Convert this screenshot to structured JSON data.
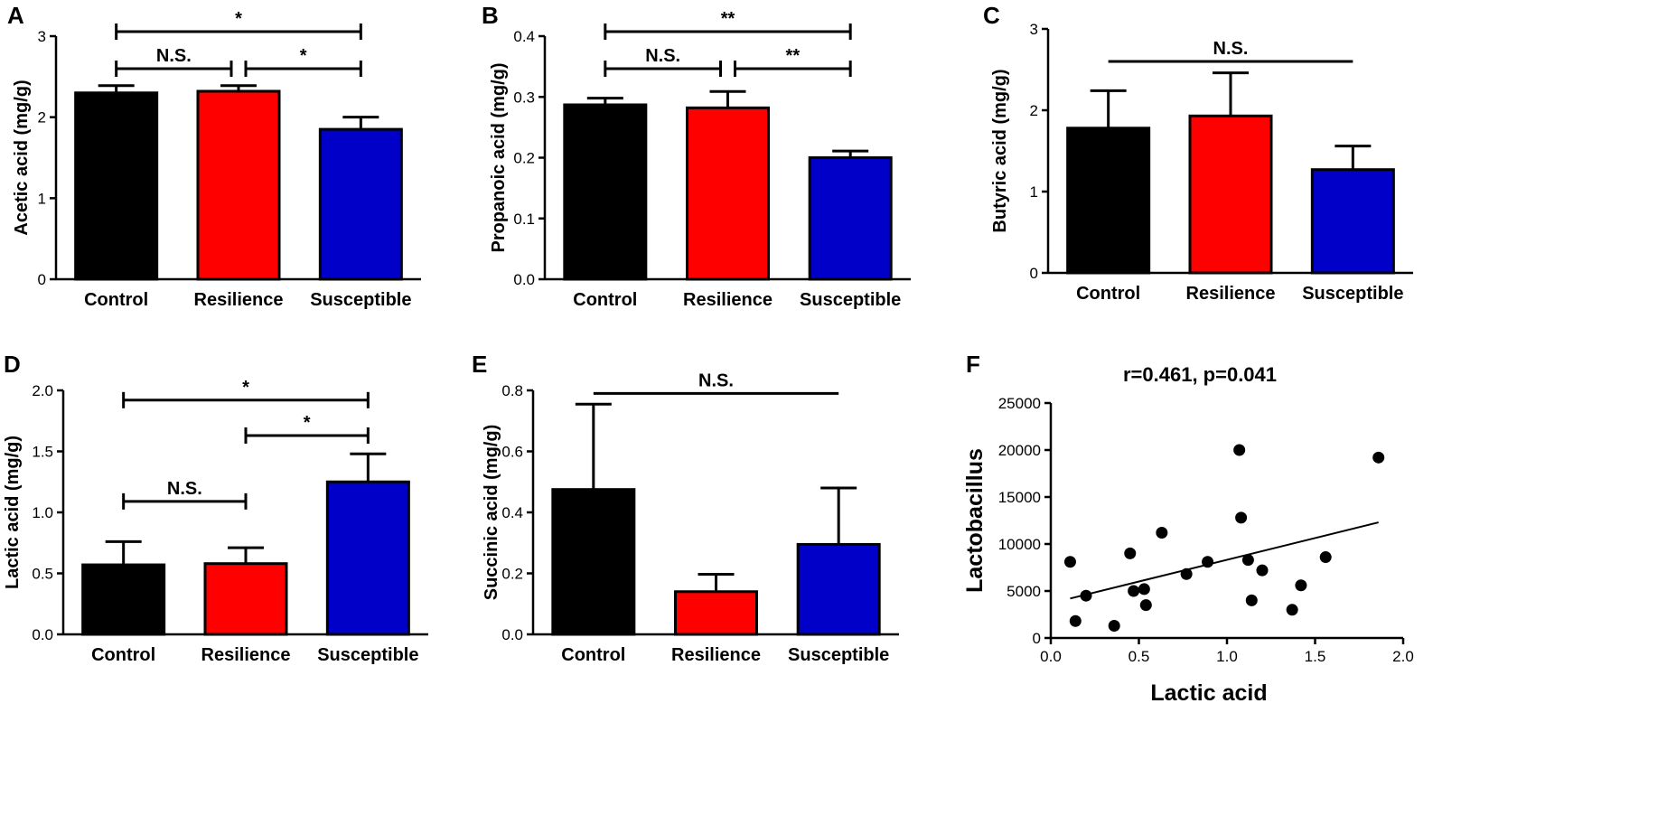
{
  "chart_data": [
    {
      "panel": "A",
      "type": "bar",
      "categories": [
        "Control",
        "Resilience",
        "Susceptible"
      ],
      "values": [
        2.3,
        2.32,
        1.85
      ],
      "errors": [
        0.09,
        0.07,
        0.15
      ],
      "colors": [
        "#000000",
        "#ff0000",
        "#0000c8"
      ],
      "title": "",
      "xlabel": "",
      "ylabel": "Acetic acid (mg/g)",
      "ylim": [
        0,
        3
      ],
      "yticks": [
        "0",
        "1",
        "2",
        "3"
      ],
      "grid": false,
      "annotations": [
        {
          "from": 0,
          "to": 2,
          "level": 1,
          "label": "*"
        },
        {
          "from": 0,
          "to": 1,
          "level": 0,
          "label": "N.S."
        },
        {
          "from": 1,
          "to": 2,
          "level": 0,
          "label": "*"
        }
      ]
    },
    {
      "panel": "B",
      "type": "bar",
      "categories": [
        "Control",
        "Resilience",
        "Susceptible"
      ],
      "values": [
        0.287,
        0.282,
        0.2
      ],
      "errors": [
        0.011,
        0.027,
        0.011
      ],
      "colors": [
        "#000000",
        "#ff0000",
        "#0000c8"
      ],
      "title": "",
      "xlabel": "",
      "ylabel": "Propanoic acid (mg/g)",
      "ylim": [
        0,
        0.4
      ],
      "yticks": [
        "0.0",
        "0.1",
        "0.2",
        "0.3",
        "0.4"
      ],
      "grid": false,
      "annotations": [
        {
          "from": 0,
          "to": 2,
          "level": 1,
          "label": "**"
        },
        {
          "from": 0,
          "to": 1,
          "level": 0,
          "label": "N.S."
        },
        {
          "from": 1,
          "to": 2,
          "level": 0,
          "label": "**"
        }
      ]
    },
    {
      "panel": "C",
      "type": "bar",
      "categories": [
        "Control",
        "Resilience",
        "Susceptible"
      ],
      "values": [
        1.78,
        1.93,
        1.27
      ],
      "errors": [
        0.46,
        0.53,
        0.29
      ],
      "colors": [
        "#000000",
        "#ff0000",
        "#0000c8"
      ],
      "title": "",
      "xlabel": "",
      "ylabel": "Butyric acid (mg/g)",
      "ylim": [
        0,
        3
      ],
      "yticks": [
        "0",
        "1",
        "2",
        "3"
      ],
      "grid": false,
      "annotations": [
        {
          "from": 0,
          "to": 2,
          "level": 0,
          "label": "N.S.",
          "plain": true
        }
      ]
    },
    {
      "panel": "D",
      "type": "bar",
      "categories": [
        "Control",
        "Resilience",
        "Susceptible"
      ],
      "values": [
        0.57,
        0.58,
        1.25
      ],
      "errors": [
        0.19,
        0.13,
        0.23
      ],
      "colors": [
        "#000000",
        "#ff0000",
        "#0000c8"
      ],
      "title": "",
      "xlabel": "",
      "ylabel": "Lactic acid (mg/g)",
      "ylim": [
        0,
        2
      ],
      "yticks": [
        "0.0",
        "0.5",
        "1.0",
        "1.5",
        "2.0"
      ],
      "grid": false,
      "annotations": [
        {
          "from": 0,
          "to": 2,
          "value": 1.92,
          "label": "*"
        },
        {
          "from": 1,
          "to": 2,
          "value": 1.63,
          "label": "*"
        },
        {
          "from": 0,
          "to": 1,
          "value": 1.09,
          "label": "N.S."
        }
      ]
    },
    {
      "panel": "E",
      "type": "bar",
      "categories": [
        "Control",
        "Resilience",
        "Susceptible"
      ],
      "values": [
        0.475,
        0.14,
        0.295
      ],
      "errors": [
        0.28,
        0.057,
        0.185
      ],
      "colors": [
        "#000000",
        "#ff0000",
        "#0000c8"
      ],
      "title": "",
      "xlabel": "",
      "ylabel": "Succinic acid (mg/g)",
      "ylim": [
        0,
        0.8
      ],
      "yticks": [
        "0.0",
        "0.2",
        "0.4",
        "0.6",
        "0.8"
      ],
      "grid": false,
      "annotations": [
        {
          "from": 0,
          "to": 2,
          "value": 0.79,
          "label": "N.S.",
          "plain": true
        }
      ]
    },
    {
      "panel": "F",
      "type": "scatter",
      "title": "r=0.461, p=0.041",
      "xlabel": "Lactic acid",
      "ylabel": "Lactobacillus",
      "xlim": [
        0,
        2
      ],
      "ylim": [
        0,
        25000
      ],
      "xticks": [
        "0.0",
        "0.5",
        "1.0",
        "1.5",
        "2.0"
      ],
      "yticks": [
        "0",
        "5000",
        "10000",
        "15000",
        "20000",
        "25000"
      ],
      "grid": false,
      "x": [
        0.11,
        0.14,
        0.2,
        0.36,
        0.45,
        0.47,
        0.53,
        0.54,
        0.63,
        0.77,
        0.89,
        1.07,
        1.08,
        1.12,
        1.14,
        1.2,
        1.37,
        1.42,
        1.56,
        1.86
      ],
      "y": [
        8100,
        1800,
        4500,
        1300,
        9000,
        5000,
        5200,
        3500,
        11200,
        6800,
        8100,
        20000,
        12800,
        8300,
        4000,
        7200,
        3000,
        5600,
        8600,
        19200
      ],
      "trendline": {
        "x": [
          0.11,
          1.86
        ],
        "y": [
          4200,
          12300
        ]
      }
    }
  ]
}
